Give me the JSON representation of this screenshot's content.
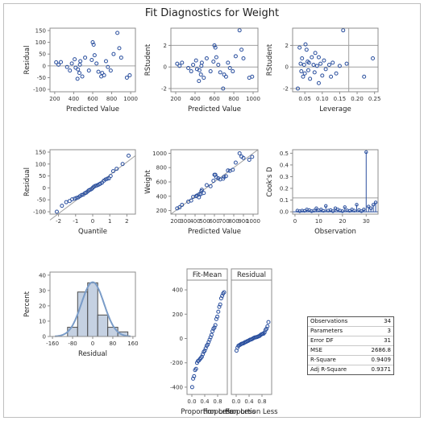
{
  "title": "Fit Diagnostics for Weight",
  "colors": {
    "marker": "#2a4f9e",
    "bar_fill": "#c5d1e2",
    "bar_stroke": "#4b4b4b",
    "curve": "#7a9cc8",
    "ref": "#a0a0a0"
  },
  "chart_data": [
    {
      "type": "scatter",
      "id": "resid_pred",
      "xlabel": "Predicted Value",
      "ylabel": "Residual",
      "xlim": [
        150,
        1050
      ],
      "ylim": [
        -110,
        160
      ],
      "xticks": [
        200,
        400,
        600,
        800,
        1000
      ],
      "yticks": [
        -100,
        -50,
        0,
        50,
        100,
        150
      ],
      "hline": 0,
      "points": [
        [
          215,
          15
        ],
        [
          240,
          5
        ],
        [
          265,
          16
        ],
        [
          330,
          -5
        ],
        [
          360,
          -20
        ],
        [
          380,
          10
        ],
        [
          410,
          28
        ],
        [
          420,
          -8
        ],
        [
          440,
          -55
        ],
        [
          445,
          -15
        ],
        [
          460,
          -30
        ],
        [
          465,
          5
        ],
        [
          470,
          20
        ],
        [
          490,
          -45
        ],
        [
          520,
          35
        ],
        [
          560,
          -20
        ],
        [
          590,
          25
        ],
        [
          600,
          100
        ],
        [
          610,
          90
        ],
        [
          620,
          45
        ],
        [
          640,
          10
        ],
        [
          660,
          -25
        ],
        [
          690,
          -45
        ],
        [
          700,
          -30
        ],
        [
          720,
          -40
        ],
        [
          740,
          20
        ],
        [
          760,
          -5
        ],
        [
          790,
          -20
        ],
        [
          820,
          50
        ],
        [
          860,
          140
        ],
        [
          880,
          75
        ],
        [
          900,
          35
        ],
        [
          960,
          -50
        ],
        [
          990,
          -40
        ]
      ]
    },
    {
      "type": "scatter",
      "id": "rstud_pred",
      "xlabel": "Predicted Value",
      "ylabel": "RStudent",
      "xlim": [
        150,
        1050
      ],
      "ylim": [
        -2.3,
        3.6
      ],
      "xticks": [
        200,
        400,
        600,
        800,
        1000
      ],
      "yticks": [
        -2,
        0,
        2
      ],
      "hlines": [
        -2,
        0,
        2
      ],
      "points": [
        [
          215,
          0.3
        ],
        [
          240,
          0.1
        ],
        [
          265,
          0.4
        ],
        [
          330,
          -0.1
        ],
        [
          360,
          -0.4
        ],
        [
          380,
          0.2
        ],
        [
          410,
          0.6
        ],
        [
          420,
          -0.2
        ],
        [
          440,
          -1.3
        ],
        [
          445,
          -0.3
        ],
        [
          460,
          -0.7
        ],
        [
          465,
          0.1
        ],
        [
          470,
          0.4
        ],
        [
          490,
          -1.0
        ],
        [
          520,
          0.8
        ],
        [
          560,
          -0.4
        ],
        [
          590,
          0.5
        ],
        [
          600,
          2.0
        ],
        [
          610,
          1.8
        ],
        [
          620,
          0.9
        ],
        [
          640,
          0.2
        ],
        [
          660,
          -0.5
        ],
        [
          690,
          -2.0
        ],
        [
          700,
          -0.7
        ],
        [
          720,
          -0.9
        ],
        [
          740,
          0.4
        ],
        [
          760,
          -0.1
        ],
        [
          790,
          -0.4
        ],
        [
          820,
          1.0
        ],
        [
          860,
          3.4
        ],
        [
          880,
          1.6
        ],
        [
          900,
          0.8
        ],
        [
          960,
          -1.0
        ],
        [
          990,
          -0.9
        ]
      ]
    },
    {
      "type": "scatter",
      "id": "rstud_lev",
      "xlabel": "Leverage",
      "ylabel": "RStudent",
      "xlim": [
        0.015,
        0.26
      ],
      "ylim": [
        -2.3,
        3.6
      ],
      "xticks": [
        0.05,
        0.1,
        0.15,
        0.2,
        0.25
      ],
      "xticklabels": [
        "0.05",
        "0.10",
        "0.15",
        "0.20",
        "0.25"
      ],
      "yticks": [
        -2,
        0,
        2
      ],
      "hlines": [
        -2,
        0,
        2
      ],
      "vline": 0.176,
      "points": [
        [
          0.03,
          -2.0
        ],
        [
          0.035,
          1.8
        ],
        [
          0.038,
          0.3
        ],
        [
          0.04,
          -0.4
        ],
        [
          0.042,
          0.8
        ],
        [
          0.045,
          -0.9
        ],
        [
          0.048,
          0.2
        ],
        [
          0.05,
          -0.6
        ],
        [
          0.052,
          2.1
        ],
        [
          0.055,
          1.6
        ],
        [
          0.058,
          0.5
        ],
        [
          0.06,
          -0.3
        ],
        [
          0.062,
          0.4
        ],
        [
          0.065,
          -1.1
        ],
        [
          0.07,
          0.9
        ],
        [
          0.075,
          0.2
        ],
        [
          0.078,
          -0.5
        ],
        [
          0.08,
          1.3
        ],
        [
          0.085,
          0.1
        ],
        [
          0.09,
          -1.5
        ],
        [
          0.095,
          0.3
        ],
        [
          0.1,
          -0.8
        ],
        [
          0.105,
          0.6
        ],
        [
          0.11,
          -0.2
        ],
        [
          0.12,
          0.2
        ],
        [
          0.125,
          -0.9
        ],
        [
          0.13,
          0.4
        ],
        [
          0.14,
          -0.6
        ],
        [
          0.15,
          0.1
        ],
        [
          0.16,
          3.4
        ],
        [
          0.17,
          0.3
        ],
        [
          0.22,
          -0.9
        ],
        [
          0.245,
          0.8
        ],
        [
          0.09,
          0.9
        ]
      ]
    },
    {
      "type": "scatter",
      "id": "qq_resid",
      "xlabel": "Quantile",
      "ylabel": "Residual",
      "xlim": [
        -2.5,
        2.5
      ],
      "ylim": [
        -110,
        160
      ],
      "xticks": [
        -2,
        -1,
        0,
        1,
        2
      ],
      "yticks": [
        -100,
        -50,
        0,
        50,
        100,
        150
      ],
      "refline": [
        [
          -2.5,
          -135
        ],
        [
          2.5,
          135
        ]
      ],
      "points": [
        [
          -2.1,
          -100
        ],
        [
          -1.8,
          -75
        ],
        [
          -1.55,
          -60
        ],
        [
          -1.35,
          -55
        ],
        [
          -1.2,
          -48
        ],
        [
          -1.05,
          -45
        ],
        [
          -0.95,
          -42
        ],
        [
          -0.85,
          -40
        ],
        [
          -0.75,
          -35
        ],
        [
          -0.65,
          -30
        ],
        [
          -0.55,
          -28
        ],
        [
          -0.45,
          -22
        ],
        [
          -0.38,
          -20
        ],
        [
          -0.3,
          -15
        ],
        [
          -0.22,
          -10
        ],
        [
          -0.15,
          -8
        ],
        [
          -0.07,
          -5
        ],
        [
          0.0,
          0
        ],
        [
          0.07,
          5
        ],
        [
          0.15,
          8
        ],
        [
          0.22,
          10
        ],
        [
          0.3,
          12
        ],
        [
          0.38,
          15
        ],
        [
          0.45,
          18
        ],
        [
          0.55,
          22
        ],
        [
          0.65,
          30
        ],
        [
          0.75,
          35
        ],
        [
          0.85,
          38
        ],
        [
          0.95,
          40
        ],
        [
          1.05,
          50
        ],
        [
          1.2,
          70
        ],
        [
          1.4,
          80
        ],
        [
          1.75,
          100
        ],
        [
          2.1,
          135
        ]
      ]
    },
    {
      "type": "scatter",
      "id": "obs_pred",
      "xlabel": "Predicted Value",
      "ylabel": "Weight",
      "xlim": [
        150,
        1050
      ],
      "ylim": [
        150,
        1050
      ],
      "xticks": [
        200,
        300,
        400,
        500,
        600,
        700,
        800,
        900,
        1000
      ],
      "yticks": [
        200,
        400,
        600,
        800,
        1000
      ],
      "refline": [
        [
          150,
          150
        ],
        [
          1050,
          1050
        ]
      ],
      "points": [
        [
          215,
          230
        ],
        [
          240,
          245
        ],
        [
          265,
          280
        ],
        [
          330,
          325
        ],
        [
          360,
          340
        ],
        [
          380,
          390
        ],
        [
          410,
          400
        ],
        [
          420,
          410
        ],
        [
          440,
          385
        ],
        [
          445,
          430
        ],
        [
          460,
          430
        ],
        [
          465,
          470
        ],
        [
          470,
          490
        ],
        [
          490,
          445
        ],
        [
          520,
          555
        ],
        [
          560,
          540
        ],
        [
          590,
          615
        ],
        [
          600,
          700
        ],
        [
          610,
          700
        ],
        [
          620,
          665
        ],
        [
          640,
          650
        ],
        [
          660,
          635
        ],
        [
          690,
          645
        ],
        [
          700,
          670
        ],
        [
          720,
          680
        ],
        [
          740,
          760
        ],
        [
          760,
          755
        ],
        [
          790,
          770
        ],
        [
          820,
          870
        ],
        [
          860,
          1000
        ],
        [
          880,
          955
        ],
        [
          900,
          935
        ],
        [
          960,
          910
        ],
        [
          990,
          950
        ]
      ]
    },
    {
      "type": "bar",
      "id": "cooks",
      "xlabel": "Observation",
      "ylabel": "Cook's D",
      "xlim": [
        -1,
        35
      ],
      "ylim": [
        -0.02,
        0.53
      ],
      "xticks": [
        0,
        10,
        20,
        30
      ],
      "yticks": [
        0.0,
        0.1,
        0.2,
        0.3,
        0.4,
        0.5
      ],
      "yticklabels": [
        "0.0",
        "0.1",
        "0.2",
        "0.3",
        "0.4",
        "0.5"
      ],
      "hline": 0.118,
      "values": [
        0.01,
        0.005,
        0.01,
        0.008,
        0.02,
        0.015,
        0.005,
        0.01,
        0.03,
        0.012,
        0.02,
        0.008,
        0.05,
        0.01,
        0.015,
        0.005,
        0.03,
        0.02,
        0.01,
        0.005,
        0.04,
        0.012,
        0.008,
        0.02,
        0.01,
        0.06,
        0.015,
        0.005,
        0.02,
        0.51,
        0.045,
        0.03,
        0.06,
        0.08
      ]
    },
    {
      "type": "histogram",
      "id": "resid_hist",
      "xlabel": "Residual",
      "ylabel": "Percent",
      "xlim": [
        -170,
        170
      ],
      "ylim": [
        0,
        42
      ],
      "xticks": [
        -160,
        -80,
        0,
        80,
        160
      ],
      "yticks": [
        0,
        10,
        20,
        30,
        40
      ],
      "bins": [
        [
          -100,
          -60,
          6
        ],
        [
          -60,
          -20,
          29
        ],
        [
          -20,
          20,
          35
        ],
        [
          20,
          60,
          14
        ],
        [
          60,
          100,
          6
        ],
        [
          100,
          140,
          3
        ]
      ],
      "normal": {
        "mean": 0,
        "sd": 45
      }
    },
    {
      "type": "scatter",
      "id": "rf_plot",
      "xlabel": "Proportion Less",
      "panels": [
        "Fit-Mean",
        "Residual"
      ],
      "xlim": [
        -0.15,
        1.1
      ],
      "ylim": [
        -460,
        480
      ],
      "xticks": [
        0,
        0.4,
        0.8
      ],
      "xticklabels": [
        "0.0",
        "0.4",
        "0.8"
      ],
      "yticks": [
        -400,
        -200,
        0,
        200,
        400
      ],
      "fitmean": [
        [
          0.01,
          -400
        ],
        [
          0.04,
          -330
        ],
        [
          0.07,
          -310
        ],
        [
          0.1,
          -260
        ],
        [
          0.13,
          -250
        ],
        [
          0.16,
          -200
        ],
        [
          0.19,
          -185
        ],
        [
          0.22,
          -180
        ],
        [
          0.25,
          -170
        ],
        [
          0.28,
          -160
        ],
        [
          0.31,
          -150
        ],
        [
          0.34,
          -130
        ],
        [
          0.37,
          -110
        ],
        [
          0.4,
          -100
        ],
        [
          0.43,
          -80
        ],
        [
          0.46,
          -60
        ],
        [
          0.49,
          -50
        ],
        [
          0.52,
          -30
        ],
        [
          0.55,
          -10
        ],
        [
          0.58,
          10
        ],
        [
          0.61,
          30
        ],
        [
          0.64,
          60
        ],
        [
          0.67,
          80
        ],
        [
          0.7,
          90
        ],
        [
          0.73,
          110
        ],
        [
          0.76,
          160
        ],
        [
          0.79,
          180
        ],
        [
          0.82,
          220
        ],
        [
          0.85,
          260
        ],
        [
          0.88,
          280
        ],
        [
          0.91,
          330
        ],
        [
          0.94,
          350
        ],
        [
          0.97,
          370
        ],
        [
          1.0,
          380
        ]
      ],
      "residual": [
        [
          0.01,
          -100
        ],
        [
          0.04,
          -75
        ],
        [
          0.07,
          -60
        ],
        [
          0.1,
          -55
        ],
        [
          0.13,
          -50
        ],
        [
          0.16,
          -45
        ],
        [
          0.19,
          -42
        ],
        [
          0.22,
          -40
        ],
        [
          0.25,
          -35
        ],
        [
          0.28,
          -30
        ],
        [
          0.31,
          -28
        ],
        [
          0.34,
          -22
        ],
        [
          0.37,
          -20
        ],
        [
          0.4,
          -15
        ],
        [
          0.43,
          -10
        ],
        [
          0.46,
          -8
        ],
        [
          0.49,
          -5
        ],
        [
          0.52,
          0
        ],
        [
          0.55,
          5
        ],
        [
          0.58,
          8
        ],
        [
          0.61,
          10
        ],
        [
          0.64,
          12
        ],
        [
          0.67,
          15
        ],
        [
          0.7,
          18
        ],
        [
          0.73,
          22
        ],
        [
          0.76,
          30
        ],
        [
          0.79,
          35
        ],
        [
          0.82,
          38
        ],
        [
          0.85,
          40
        ],
        [
          0.88,
          50
        ],
        [
          0.91,
          70
        ],
        [
          0.94,
          80
        ],
        [
          0.97,
          100
        ],
        [
          1.0,
          135
        ]
      ]
    }
  ],
  "stats": [
    {
      "label": "Observations",
      "value": "34"
    },
    {
      "label": "Parameters",
      "value": "3"
    },
    {
      "label": "Error DF",
      "value": "31"
    },
    {
      "label": "MSE",
      "value": "2686.8"
    },
    {
      "label": "R-Square",
      "value": "0.9409"
    },
    {
      "label": "Adj R-Square",
      "value": "0.9371"
    }
  ]
}
